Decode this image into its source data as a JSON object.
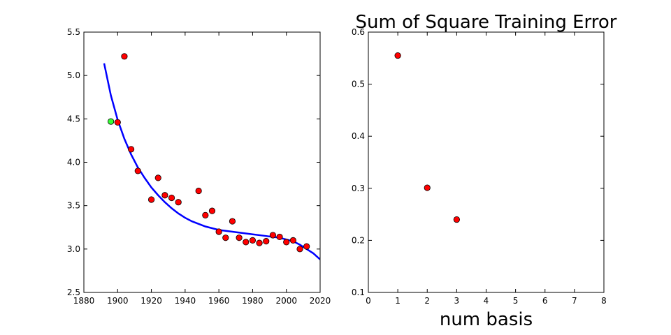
{
  "chart_data": [
    {
      "type": "scatter",
      "title": "",
      "xlabel": "",
      "ylabel": "",
      "xlim": [
        1880,
        2020
      ],
      "ylim": [
        2.5,
        5.5
      ],
      "xticks": [
        "1880",
        "1900",
        "1920",
        "1940",
        "1960",
        "1980",
        "2000",
        "2020"
      ],
      "yticks": [
        "2.5",
        "3.0",
        "3.5",
        "4.0",
        "4.5",
        "5.0",
        "5.5"
      ],
      "grid": false,
      "series": [
        {
          "type": "scatter",
          "color": "#ff0000",
          "points": [
            [
              1900,
              4.46
            ],
            [
              1904,
              5.22
            ],
            [
              1908,
              4.15
            ],
            [
              1912,
              3.9
            ],
            [
              1920,
              3.57
            ],
            [
              1924,
              3.82
            ],
            [
              1928,
              3.62
            ],
            [
              1932,
              3.59
            ],
            [
              1936,
              3.54
            ],
            [
              1948,
              3.67
            ],
            [
              1952,
              3.39
            ],
            [
              1956,
              3.44
            ],
            [
              1960,
              3.2
            ],
            [
              1964,
              3.13
            ],
            [
              1968,
              3.32
            ],
            [
              1972,
              3.13
            ],
            [
              1976,
              3.08
            ],
            [
              1980,
              3.1
            ],
            [
              1984,
              3.07
            ],
            [
              1988,
              3.09
            ],
            [
              1992,
              3.16
            ],
            [
              1996,
              3.14
            ],
            [
              2000,
              3.08
            ],
            [
              2004,
              3.1
            ],
            [
              2008,
              3.0
            ],
            [
              2012,
              3.03
            ]
          ]
        },
        {
          "type": "scatter",
          "color": "#33ff33",
          "points": [
            [
              1896,
              4.47
            ]
          ]
        },
        {
          "type": "line",
          "color": "#0000ff",
          "points": [
            [
              1892,
              5.14
            ],
            [
              1896,
              4.77
            ],
            [
              1900,
              4.49
            ],
            [
              1904,
              4.27
            ],
            [
              1908,
              4.09
            ],
            [
              1912,
              3.94
            ],
            [
              1916,
              3.82
            ],
            [
              1920,
              3.71
            ],
            [
              1924,
              3.62
            ],
            [
              1928,
              3.54
            ],
            [
              1932,
              3.47
            ],
            [
              1936,
              3.41
            ],
            [
              1940,
              3.36
            ],
            [
              1944,
              3.32
            ],
            [
              1948,
              3.29
            ],
            [
              1952,
              3.26
            ],
            [
              1956,
              3.24
            ],
            [
              1960,
              3.22
            ],
            [
              1964,
              3.21
            ],
            [
              1968,
              3.2
            ],
            [
              1972,
              3.19
            ],
            [
              1976,
              3.18
            ],
            [
              1980,
              3.17
            ],
            [
              1984,
              3.16
            ],
            [
              1988,
              3.15
            ],
            [
              1992,
              3.14
            ],
            [
              1996,
              3.13
            ],
            [
              2000,
              3.11
            ],
            [
              2004,
              3.09
            ],
            [
              2008,
              3.05
            ],
            [
              2012,
              3.0
            ],
            [
              2016,
              2.95
            ],
            [
              2020,
              2.88
            ]
          ]
        }
      ]
    },
    {
      "type": "scatter",
      "title": "Sum of Square Training Error",
      "xlabel": "num basis",
      "ylabel": "",
      "xlim": [
        0,
        8
      ],
      "ylim": [
        0.1,
        0.6
      ],
      "xticks": [
        "0",
        "1",
        "2",
        "3",
        "4",
        "5",
        "6",
        "7",
        "8"
      ],
      "yticks": [
        "0.1",
        "0.2",
        "0.3",
        "0.4",
        "0.5",
        "0.6"
      ],
      "grid": false,
      "series": [
        {
          "type": "scatter",
          "color": "#ff0000",
          "points": [
            [
              1,
              0.555
            ],
            [
              2,
              0.301
            ],
            [
              3,
              0.24
            ]
          ]
        }
      ]
    }
  ]
}
